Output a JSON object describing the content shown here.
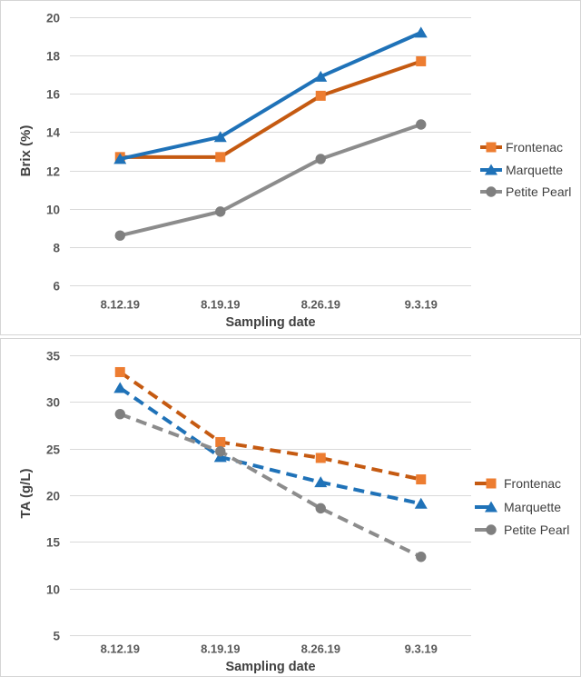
{
  "style": {
    "background": "#ffffff",
    "panel_border": "#d5d5d5",
    "grid_color": "#d9d9d9",
    "tick_text_color": "#595959",
    "axis_title_color": "#404040",
    "legend_text_color": "#404040"
  },
  "chart_data": [
    {
      "id": "brix",
      "type": "line",
      "title": "",
      "xlabel": "Sampling date",
      "ylabel": "Brix (%)",
      "categories": [
        "8.12.19",
        "8.19.19",
        "8.26.19",
        "9.3.19"
      ],
      "yticks": [
        20,
        18,
        16,
        14,
        12,
        10,
        8,
        6
      ],
      "ylim": [
        6,
        20
      ],
      "grid": true,
      "line_style": "solid",
      "legend_position": "right",
      "series": [
        {
          "name": "Frontenac",
          "marker": "square",
          "line_color": "#C55A11",
          "marker_color": "#ED7D31",
          "values": [
            12.7,
            12.7,
            15.9,
            17.7
          ]
        },
        {
          "name": "Marquette",
          "marker": "triangle",
          "line_color": "#1F72B8",
          "marker_color": "#1F72B8",
          "values": [
            12.6,
            13.75,
            16.9,
            19.2
          ]
        },
        {
          "name": "Petite Pearl",
          "marker": "circle",
          "line_color": "#8C8C8C",
          "marker_color": "#7F7F7F",
          "values": [
            8.6,
            9.85,
            12.6,
            14.4
          ]
        }
      ]
    },
    {
      "id": "ta",
      "type": "line",
      "title": "",
      "xlabel": "Sampling date",
      "ylabel": "TA (g/L)",
      "categories": [
        "8.12.19",
        "8.19.19",
        "8.26.19",
        "9.3.19"
      ],
      "yticks": [
        35,
        30,
        25,
        20,
        15,
        10,
        5
      ],
      "ylim": [
        5,
        35
      ],
      "grid": true,
      "line_style": "dashed",
      "legend_position": "right",
      "series": [
        {
          "name": "Frontenac",
          "marker": "square",
          "line_color": "#C55A11",
          "marker_color": "#ED7D31",
          "values": [
            33.2,
            25.7,
            24.0,
            21.7
          ]
        },
        {
          "name": "Marquette",
          "marker": "triangle",
          "line_color": "#1F72B8",
          "marker_color": "#1F72B8",
          "values": [
            31.5,
            24.1,
            21.4,
            19.1
          ]
        },
        {
          "name": "Petite Pearl",
          "marker": "circle",
          "line_color": "#8C8C8C",
          "marker_color": "#7F7F7F",
          "values": [
            28.7,
            24.7,
            18.6,
            13.4
          ]
        }
      ]
    }
  ]
}
